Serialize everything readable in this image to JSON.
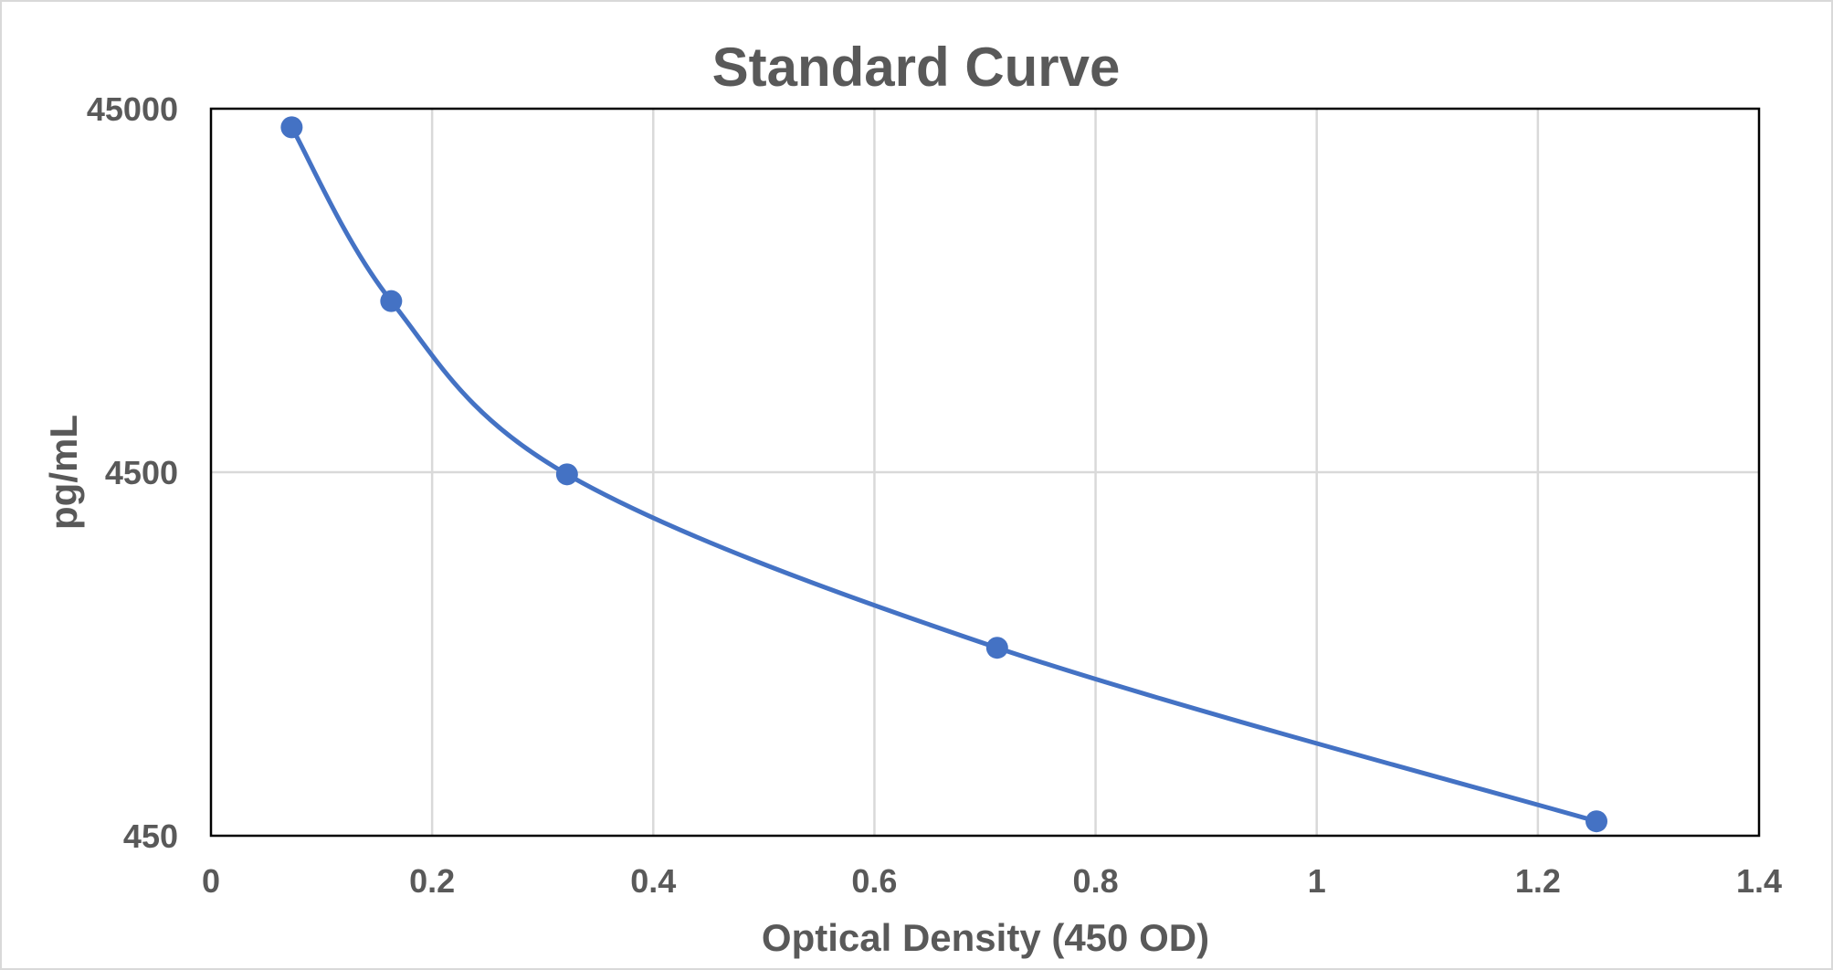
{
  "chart_data": {
    "type": "scatter",
    "title": "Standard Curve",
    "xlabel": "Optical Density (450 OD)",
    "ylabel": "pg/mL",
    "xlim": [
      0,
      1.4
    ],
    "ylim": [
      450,
      45000
    ],
    "y_scale": "log",
    "x_ticks": [
      "0",
      "0.2",
      "0.4",
      "0.6",
      "0.8",
      "1",
      "1.2",
      "1.4"
    ],
    "y_ticks": [
      "450",
      "4500",
      "45000"
    ],
    "grid": true,
    "smoothed_line": true,
    "series": [
      {
        "color": "#4472c4",
        "x": [
          0.073,
          0.163,
          0.322,
          0.711,
          1.253
        ],
        "y": [
          40000,
          13300,
          4440,
          1480,
          493
        ]
      }
    ]
  }
}
